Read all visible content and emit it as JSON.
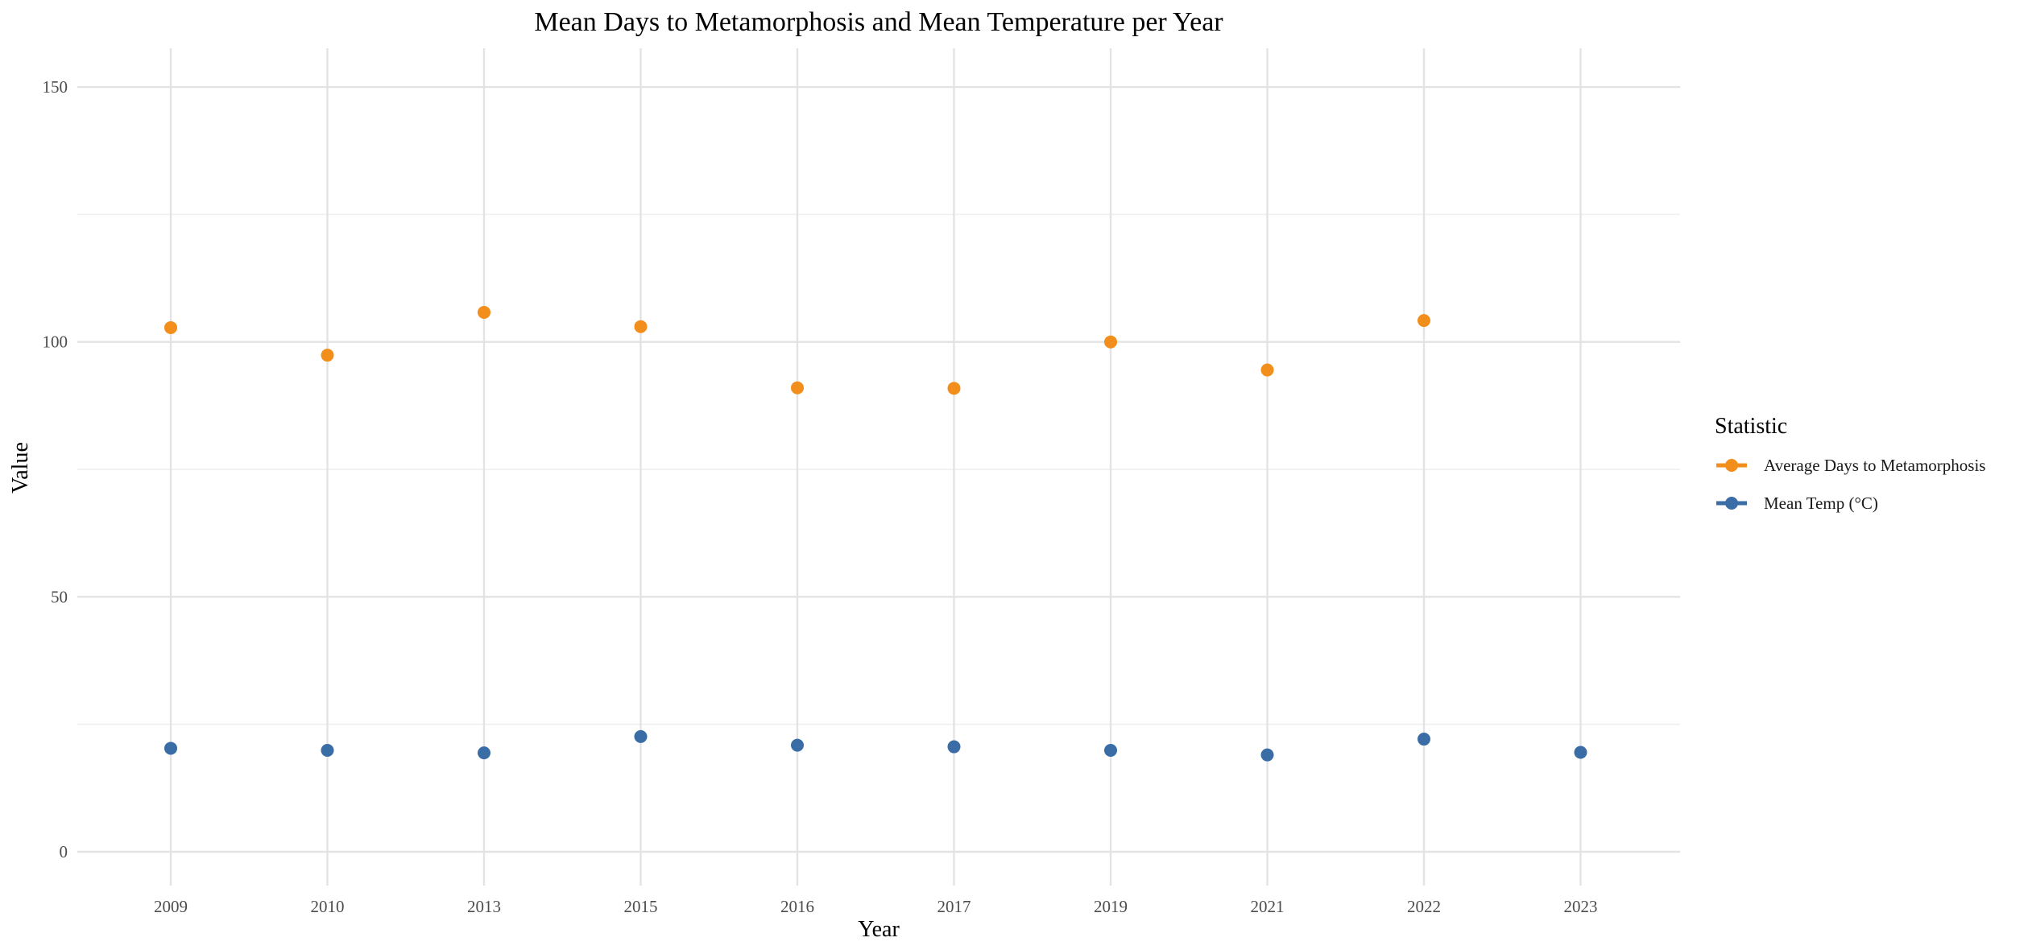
{
  "chart_data": {
    "type": "scatter",
    "title": "Mean Days to Metamorphosis and Mean Temperature per Year",
    "xlabel": "Year",
    "ylabel": "Value",
    "categories": [
      "2009",
      "2010",
      "2013",
      "2015",
      "2016",
      "2017",
      "2019",
      "2021",
      "2022",
      "2023"
    ],
    "ylim": [
      -7,
      158
    ],
    "yticks": [
      0,
      50,
      100,
      150
    ],
    "yminor": [
      25,
      75,
      125
    ],
    "grid": true,
    "legend": {
      "title": "Statistic",
      "position": "right"
    },
    "series": [
      {
        "name": "Average Days to Metamorphosis",
        "color": "#F28E1C",
        "values": [
          102.8,
          97.4,
          105.8,
          103.0,
          91.0,
          90.9,
          100.0,
          94.5,
          104.2,
          null
        ]
      },
      {
        "name": "Mean Temp (°C)",
        "color": "#3A6DA5",
        "values": [
          20.3,
          19.9,
          19.4,
          22.6,
          20.9,
          20.6,
          19.9,
          19.0,
          22.1,
          19.5
        ]
      }
    ]
  }
}
